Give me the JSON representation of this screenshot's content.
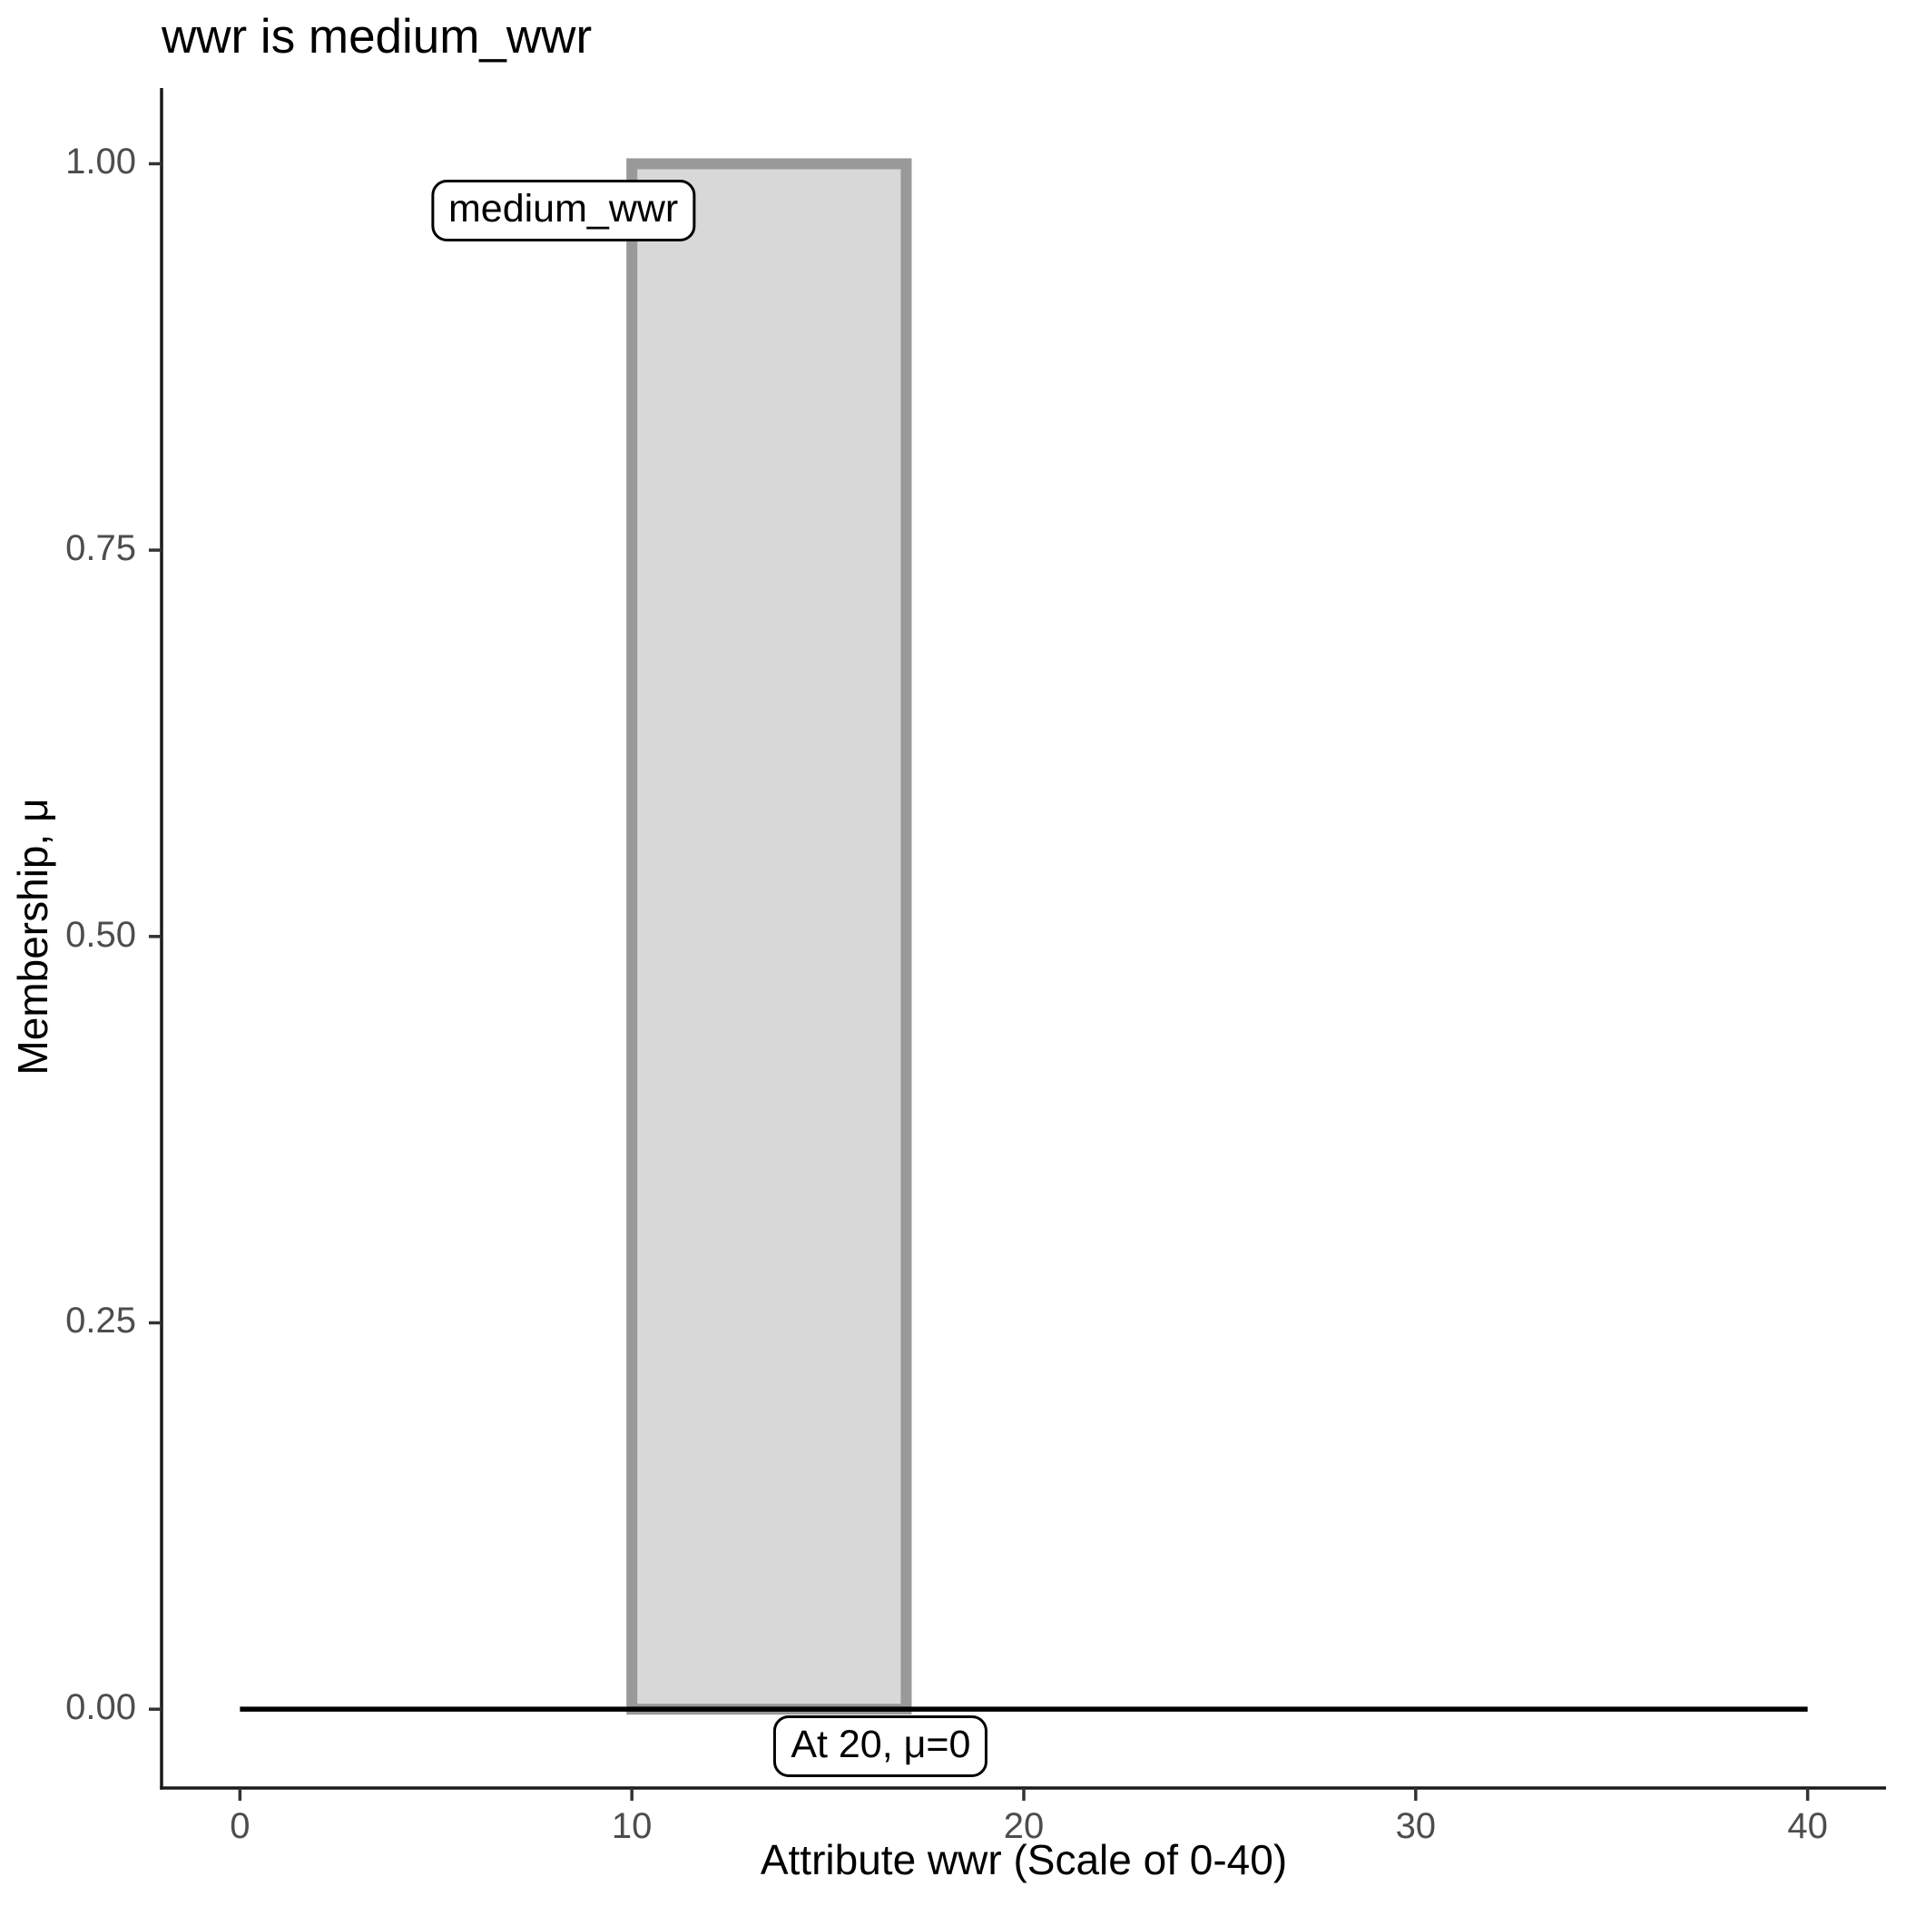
{
  "figure": {
    "title": "wwr is medium_wwr",
    "x_axis_label": "Attribute wwr (Scale of 0-40)",
    "y_axis_label": "Membership, μ"
  },
  "colors": {
    "background": "#FFFFFF",
    "bar_fill": "#D8D8D8",
    "bar_stroke": "#999999",
    "baseline": "#000000",
    "axis_line": "#1A1A1A",
    "tick_mark": "#333333",
    "tick_label": "#4D4D4D",
    "text": "#000000"
  },
  "chart_data": {
    "type": "area",
    "title": "wwr is medium_wwr",
    "xlabel": "Attribute wwr (Scale of 0-40)",
    "ylabel": "Membership, μ",
    "xlim": [
      -2,
      42
    ],
    "ylim": [
      -0.051,
      1.049
    ],
    "grid": false,
    "legend": "none",
    "x_ticks": [
      0,
      10,
      20,
      30,
      40
    ],
    "x_tick_labels": [
      "0",
      "10",
      "20",
      "30",
      "40"
    ],
    "y_ticks": [
      0.0,
      0.25,
      0.5,
      0.75,
      1.0
    ],
    "y_tick_labels": [
      "0.00",
      "0.25",
      "0.50",
      "0.75",
      "1.00"
    ],
    "membership_function": {
      "name": "medium_wwr",
      "points_x_mu": [
        [
          0,
          0
        ],
        [
          10,
          0
        ],
        [
          10,
          1
        ],
        [
          17,
          1
        ],
        [
          17,
          0
        ],
        [
          40,
          0
        ]
      ]
    },
    "series": [
      {
        "name": "medium_wwr",
        "shape": "rect",
        "x_from": 10,
        "x_to": 17,
        "mu_from": 0,
        "mu_to": 1
      },
      {
        "name": "zero-membership-baseline",
        "shape": "line",
        "x_from": 0,
        "x_to": 40,
        "mu": 0
      }
    ],
    "annotations": [
      {
        "id": "set-name-label",
        "text": "medium_wwr",
        "x": 8.25,
        "y": 0.97
      },
      {
        "id": "point-value-label",
        "text": "At 20, μ=0",
        "x": 16.35,
        "y": -0.024
      }
    ]
  }
}
